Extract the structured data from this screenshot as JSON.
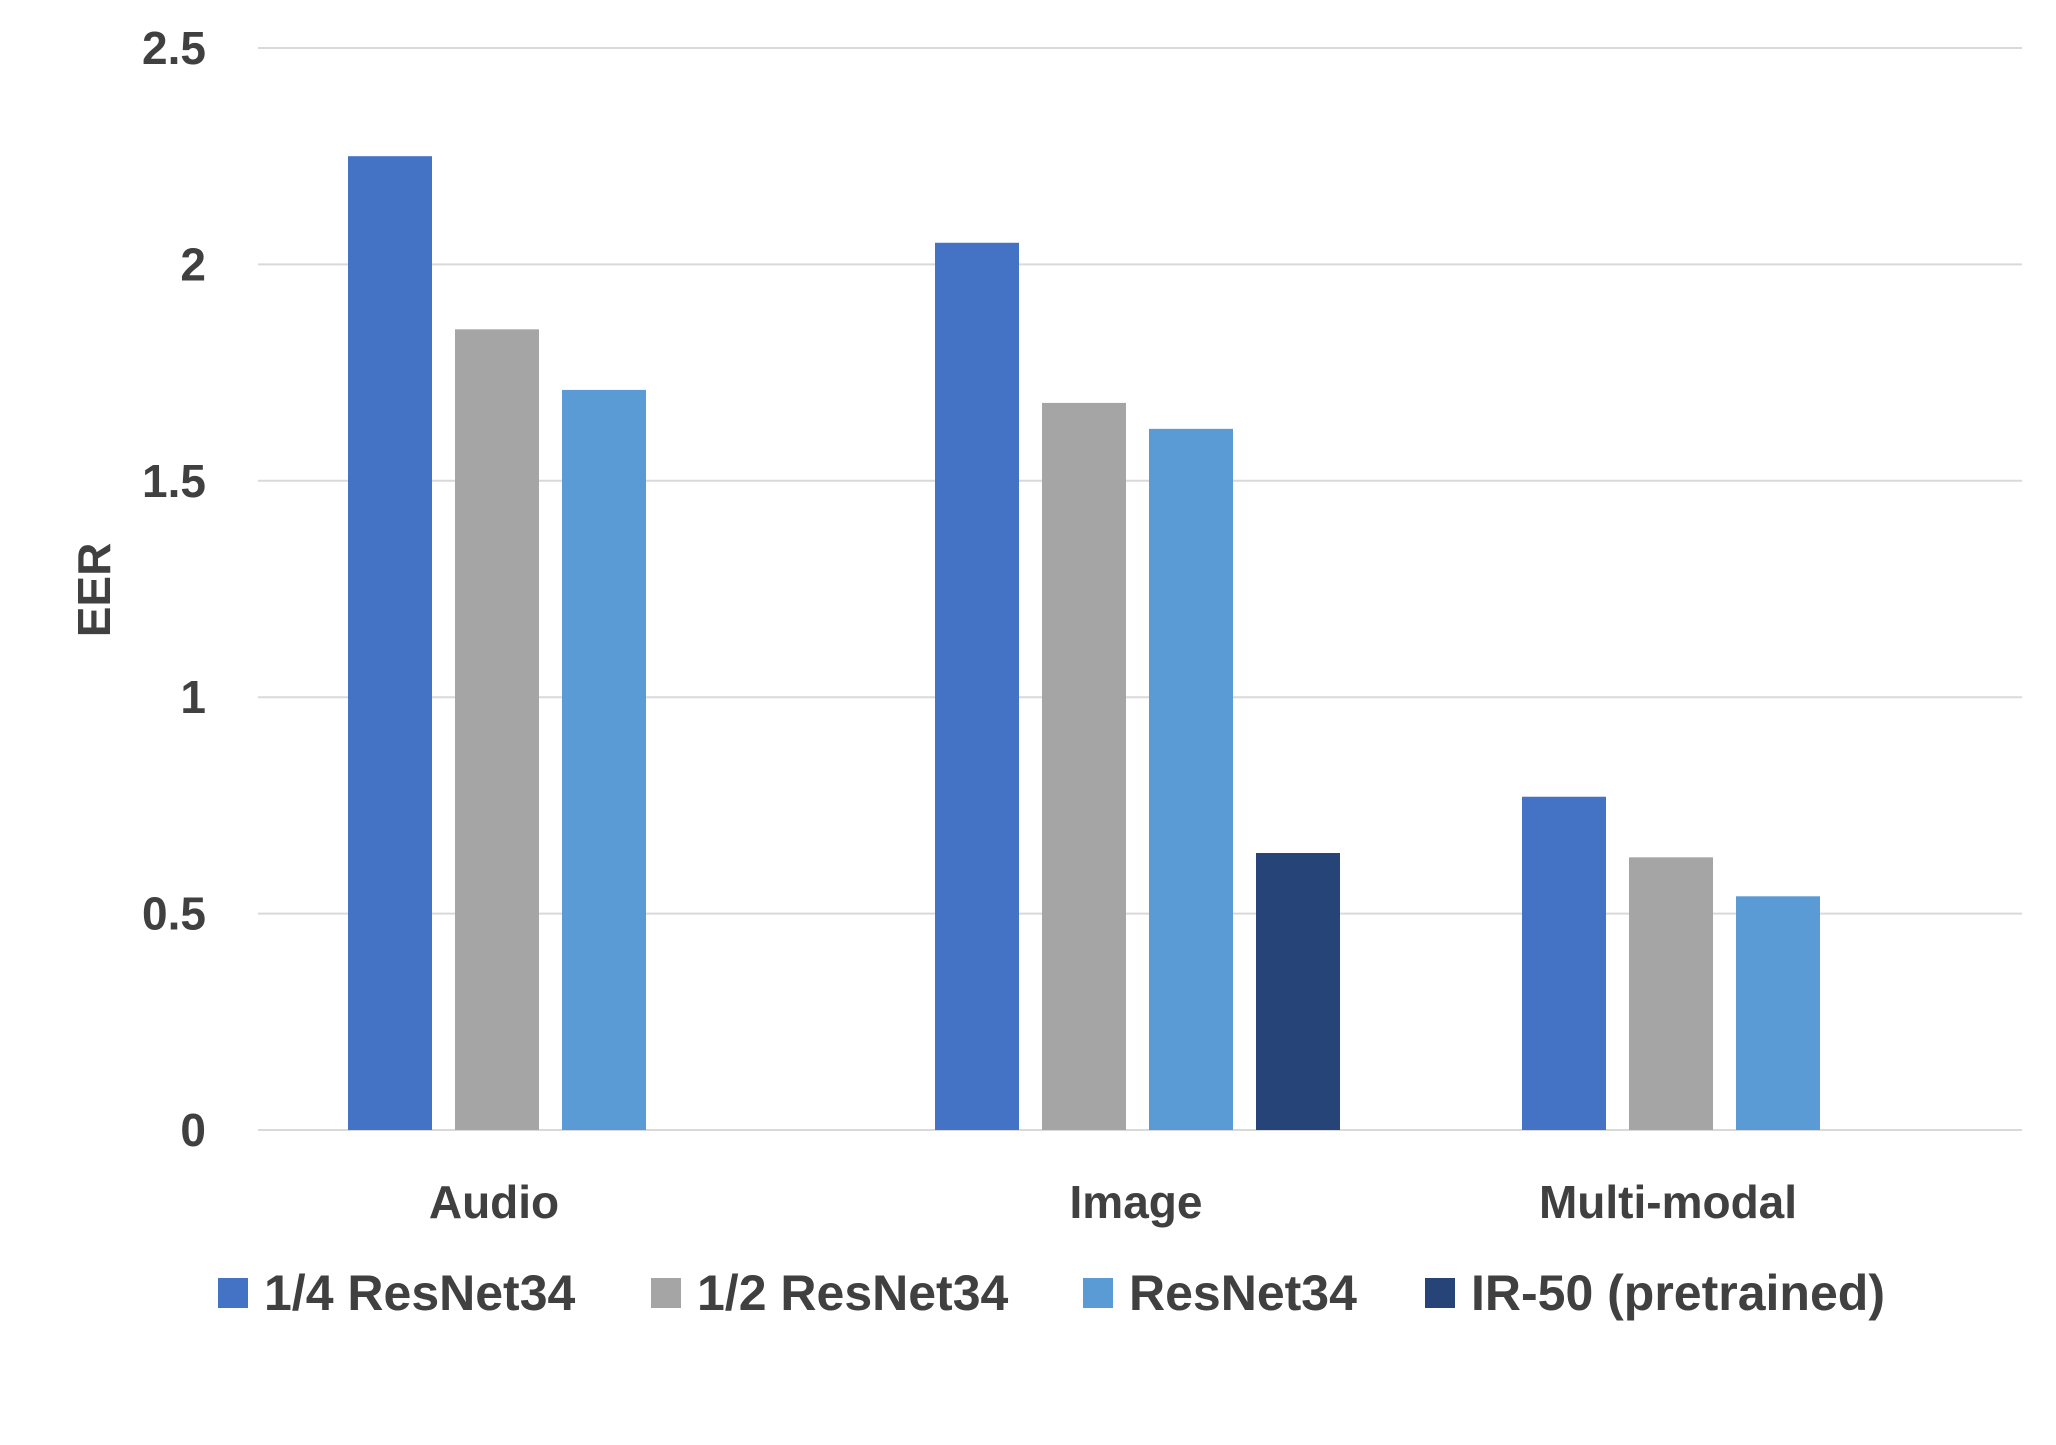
{
  "chart_data": {
    "type": "bar",
    "title": "",
    "xlabel": "",
    "ylabel": "EER",
    "ylim": [
      0,
      2.5
    ],
    "yticks": [
      0,
      0.5,
      1,
      1.5,
      2,
      2.5
    ],
    "ytick_labels": [
      "0",
      "0.5",
      "1",
      "1.5",
      "2",
      "2.5"
    ],
    "grid": "horizontal",
    "legend_position": "bottom",
    "categories": [
      "Audio",
      "Image",
      "Multi-modal"
    ],
    "series": [
      {
        "name": "1/4 ResNet34",
        "color": "#4472c4",
        "values": [
          2.25,
          2.05,
          0.77
        ]
      },
      {
        "name": "1/2 ResNet34",
        "color": "#a5a5a5",
        "values": [
          1.85,
          1.68,
          0.63
        ]
      },
      {
        "name": "ResNet34",
        "color": "#5b9bd5",
        "values": [
          1.71,
          1.62,
          0.54
        ]
      },
      {
        "name": "IR-50 (pretrained)",
        "color": "#264478",
        "values": [
          null,
          0.64,
          null
        ]
      }
    ]
  }
}
